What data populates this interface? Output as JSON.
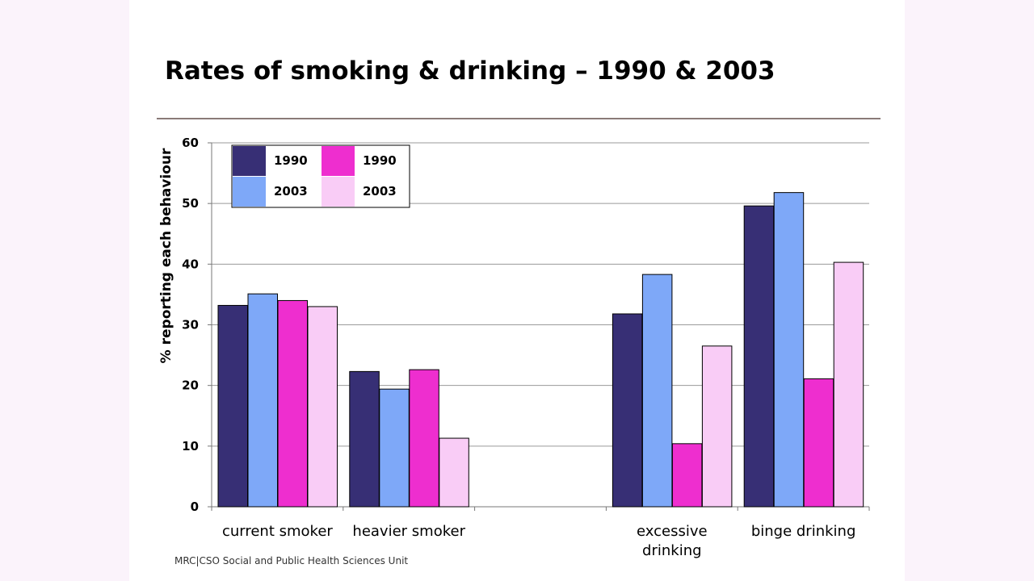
{
  "slide": {
    "title": "Rates of smoking & drinking – 1990 & 2003",
    "footer": "MRC|CSO Social and Public Health Sciences Unit"
  },
  "colors": {
    "background": "#fbf3fb",
    "rule": "#8a7a78",
    "grid": "#9a9a9a"
  },
  "chart_data": {
    "type": "bar",
    "title": "Rates of smoking & drinking – 1990 & 2003",
    "xlabel": "",
    "ylabel": "% reporting each behaviour",
    "ylim": [
      0,
      60
    ],
    "yticks": [
      0,
      10,
      20,
      30,
      40,
      50,
      60
    ],
    "grid": true,
    "legend_position": "top-left",
    "categories": [
      "current smoker",
      "heavier smoker",
      "",
      "excessive drinking",
      "binge drinking"
    ],
    "category_labels": [
      [
        "current smoker"
      ],
      [
        "heavier smoker"
      ],
      [],
      [
        "excessive",
        "drinking"
      ],
      [
        "binge drinking"
      ]
    ],
    "series": [
      {
        "name": "1990",
        "group": "blue",
        "color": "#372f75",
        "values": [
          33.2,
          22.3,
          null,
          31.8,
          49.6
        ]
      },
      {
        "name": "2003",
        "group": "blue",
        "color": "#7ea8f8",
        "values": [
          35.1,
          19.4,
          null,
          38.3,
          51.8
        ]
      },
      {
        "name": "1990",
        "group": "pink",
        "color": "#ee2ecf",
        "values": [
          34.0,
          22.6,
          null,
          10.4,
          21.1
        ]
      },
      {
        "name": "2003",
        "group": "pink",
        "color": "#f9ccf6",
        "values": [
          33.0,
          11.3,
          null,
          26.5,
          40.3
        ]
      }
    ]
  }
}
